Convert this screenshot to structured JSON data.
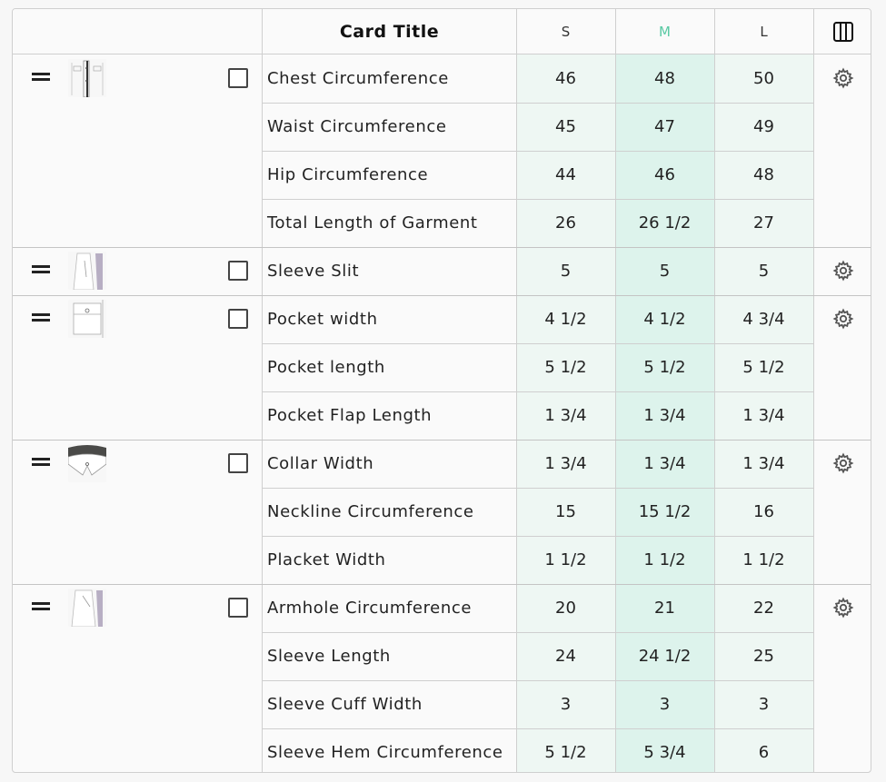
{
  "header": {
    "title": "Card Title",
    "sizes": [
      "S",
      "M",
      "L"
    ],
    "active_size": "M",
    "columns_icon": "columns-icon"
  },
  "colors": {
    "accent": "#58c9a3",
    "col_s_bg": "#eef7f3",
    "col_m_bg": "#ddf3ec",
    "col_l_bg": "#eef7f3"
  },
  "groups": [
    {
      "thumb": "shirt-front-placket-thumbnail",
      "rows": [
        {
          "label": "Chest Circumference",
          "s": "46",
          "m": "48",
          "l": "50"
        },
        {
          "label": "Waist Circumference",
          "s": "45",
          "m": "47",
          "l": "49"
        },
        {
          "label": "Hip Circumference",
          "s": "44",
          "m": "46",
          "l": "48"
        },
        {
          "label": "Total Length of Garment",
          "s": "26",
          "m": "26 1/2",
          "l": "27"
        }
      ]
    },
    {
      "thumb": "sleeve-slit-thumbnail",
      "rows": [
        {
          "label": "Sleeve Slit",
          "s": "5",
          "m": "5",
          "l": "5"
        }
      ]
    },
    {
      "thumb": "pocket-thumbnail",
      "rows": [
        {
          "label": "Pocket width",
          "s": "4 1/2",
          "m": "4 1/2",
          "l": "4 3/4"
        },
        {
          "label": "Pocket length",
          "s": "5 1/2",
          "m": "5 1/2",
          "l": "5 1/2"
        },
        {
          "label": "Pocket Flap Length",
          "s": "1 3/4",
          "m": "1 3/4",
          "l": "1 3/4"
        }
      ]
    },
    {
      "thumb": "collar-thumbnail",
      "rows": [
        {
          "label": "Collar Width",
          "s": "1 3/4",
          "m": "1 3/4",
          "l": "1 3/4"
        },
        {
          "label": "Neckline Circumference",
          "s": "15",
          "m": "15 1/2",
          "l": "16"
        },
        {
          "label": "Placket Width",
          "s": "1 1/2",
          "m": "1 1/2",
          "l": "1 1/2"
        }
      ]
    },
    {
      "thumb": "sleeve-thumbnail",
      "rows": [
        {
          "label": "Armhole Circumference",
          "s": "20",
          "m": "21",
          "l": "22"
        },
        {
          "label": "Sleeve Length",
          "s": "24",
          "m": "24 1/2",
          "l": "25"
        },
        {
          "label": "Sleeve Cuff Width",
          "s": "3",
          "m": "3",
          "l": "3"
        },
        {
          "label": "Sleeve Hem Circumference",
          "s": "5 1/2",
          "m": "5 3/4",
          "l": "6"
        }
      ]
    }
  ]
}
